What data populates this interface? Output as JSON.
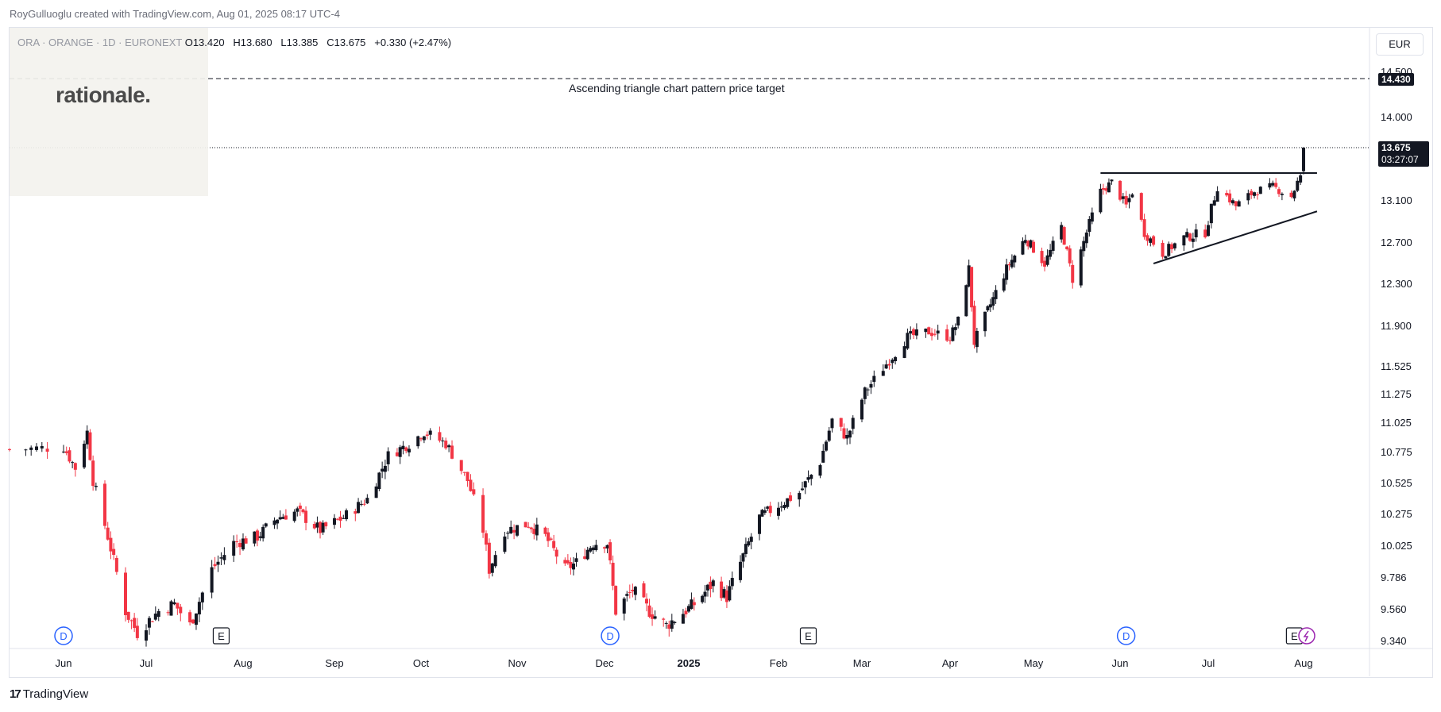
{
  "credit": "RoyGulluoglu created with TradingView.com, Aug 01, 2025 08:17 UTC-4",
  "legend": {
    "symbol": "ORA · ORANGE · 1D · EURONEXT",
    "open": "O13.420",
    "high": "H13.680",
    "low": "L13.385",
    "close": "C13.675",
    "change": "+0.330 (+2.47%)"
  },
  "logo_text": "rationale.",
  "currency": "EUR",
  "annotation": "Ascending triangle chart pattern price target",
  "badges": {
    "target": "14.430",
    "current_price": "13.675",
    "countdown": "03:27:07"
  },
  "footer_logo": "TradingView",
  "colors": {
    "up": "#131722",
    "down": "#f23645",
    "target_line": "#131722",
    "dividend_marker": "#2962ff",
    "earnings_marker": "#131722",
    "split_marker": "#9c27b0"
  },
  "chart_data": {
    "type": "candlestick",
    "symbol": "ORA",
    "interval": "1D",
    "y_axis_ticks": [
      "14.500",
      "14.000",
      "13.100",
      "12.700",
      "12.300",
      "11.900",
      "11.525",
      "11.275",
      "11.025",
      "10.775",
      "10.525",
      "10.275",
      "10.025",
      "9.786",
      "9.560",
      "9.340"
    ],
    "x_axis_ticks": [
      "Jun",
      "Jul",
      "Aug",
      "Sep",
      "Oct",
      "Nov",
      "Dec",
      "2025",
      "Feb",
      "Mar",
      "Apr",
      "May",
      "Jun",
      "Jul",
      "Aug"
    ],
    "close_path": [
      [
        "2024-05-24",
        10.8
      ],
      [
        "2024-06-03",
        10.82
      ],
      [
        "2024-06-07",
        10.65
      ],
      [
        "2024-06-11",
        10.95
      ],
      [
        "2024-06-13",
        10.55
      ],
      [
        "2024-06-18",
        10.1
      ],
      [
        "2024-06-24",
        9.55
      ],
      [
        "2024-06-28",
        9.4
      ],
      [
        "2024-07-05",
        9.55
      ],
      [
        "2024-07-10",
        9.6
      ],
      [
        "2024-07-15",
        9.45
      ],
      [
        "2024-07-22",
        9.85
      ],
      [
        "2024-07-29",
        10.05
      ],
      [
        "2024-08-06",
        10.1
      ],
      [
        "2024-08-13",
        10.25
      ],
      [
        "2024-08-20",
        10.3
      ],
      [
        "2024-08-28",
        10.15
      ],
      [
        "2024-09-05",
        10.25
      ],
      [
        "2024-09-13",
        10.4
      ],
      [
        "2024-09-20",
        10.75
      ],
      [
        "2024-09-27",
        10.85
      ],
      [
        "2024-10-02",
        10.95
      ],
      [
        "2024-10-09",
        10.85
      ],
      [
        "2024-10-16",
        10.55
      ],
      [
        "2024-10-21",
        10.15
      ],
      [
        "2024-10-23",
        9.85
      ],
      [
        "2024-10-28",
        10.15
      ],
      [
        "2024-11-05",
        10.2
      ],
      [
        "2024-11-11",
        10.1
      ],
      [
        "2024-11-18",
        9.85
      ],
      [
        "2024-11-22",
        9.9
      ],
      [
        "2024-11-28",
        10.05
      ],
      [
        "2024-12-03",
        10.05
      ],
      [
        "2024-12-06",
        9.55
      ],
      [
        "2024-12-12",
        9.7
      ],
      [
        "2024-12-18",
        9.55
      ],
      [
        "2024-12-24",
        9.45
      ],
      [
        "2025-01-03",
        9.6
      ],
      [
        "2025-01-10",
        9.75
      ],
      [
        "2025-01-15",
        9.65
      ],
      [
        "2025-01-20",
        9.9
      ],
      [
        "2025-01-27",
        10.25
      ],
      [
        "2025-02-03",
        10.35
      ],
      [
        "2025-02-10",
        10.45
      ],
      [
        "2025-02-17",
        10.7
      ],
      [
        "2025-02-21",
        11.05
      ],
      [
        "2025-02-26",
        10.9
      ],
      [
        "2025-03-04",
        11.3
      ],
      [
        "2025-03-11",
        11.55
      ],
      [
        "2025-03-18",
        11.8
      ],
      [
        "2025-03-25",
        11.85
      ],
      [
        "2025-04-01",
        11.8
      ],
      [
        "2025-04-04",
        11.95
      ],
      [
        "2025-04-08",
        12.45
      ],
      [
        "2025-04-10",
        11.75
      ],
      [
        "2025-04-15",
        12.05
      ],
      [
        "2025-04-22",
        12.45
      ],
      [
        "2025-04-29",
        12.75
      ],
      [
        "2025-05-06",
        12.5
      ],
      [
        "2025-05-12",
        12.85
      ],
      [
        "2025-05-16",
        12.35
      ],
      [
        "2025-05-21",
        12.8
      ],
      [
        "2025-05-26",
        13.2
      ],
      [
        "2025-05-30",
        13.3
      ],
      [
        "2025-06-04",
        13.05
      ],
      [
        "2025-06-06",
        13.2
      ],
      [
        "2025-06-10",
        12.8
      ],
      [
        "2025-06-16",
        12.6
      ],
      [
        "2025-06-23",
        12.75
      ],
      [
        "2025-06-30",
        12.8
      ],
      [
        "2025-07-04",
        13.25
      ],
      [
        "2025-07-10",
        13.05
      ],
      [
        "2025-07-16",
        13.2
      ],
      [
        "2025-07-22",
        13.25
      ],
      [
        "2025-07-28",
        13.15
      ],
      [
        "2025-07-30",
        13.3
      ],
      [
        "2025-07-31",
        13.345
      ],
      [
        "2025-08-01",
        13.675
      ]
    ],
    "last_bar": {
      "date": "2025-08-01",
      "open": 13.42,
      "high": 13.68,
      "low": 13.385,
      "close": 13.675
    },
    "price_target": 14.43,
    "current_price": 13.675,
    "trendlines": [
      {
        "name": "resistance",
        "from": [
          "2025-05-26",
          13.4
        ],
        "to": [
          "2025-08-07",
          13.4
        ]
      },
      {
        "name": "rising-support",
        "from": [
          "2025-06-13",
          12.5
        ],
        "to": [
          "2025-08-07",
          13.0
        ]
      }
    ],
    "event_markers": [
      {
        "type": "D",
        "date": "2024-06-03"
      },
      {
        "type": "E",
        "date": "2024-07-25"
      },
      {
        "type": "D",
        "date": "2024-12-04"
      },
      {
        "type": "E",
        "date": "2025-02-13"
      },
      {
        "type": "D",
        "date": "2025-06-04"
      },
      {
        "type": "E",
        "date": "2025-07-29"
      },
      {
        "type": "split",
        "date": "2025-08-01"
      }
    ]
  }
}
